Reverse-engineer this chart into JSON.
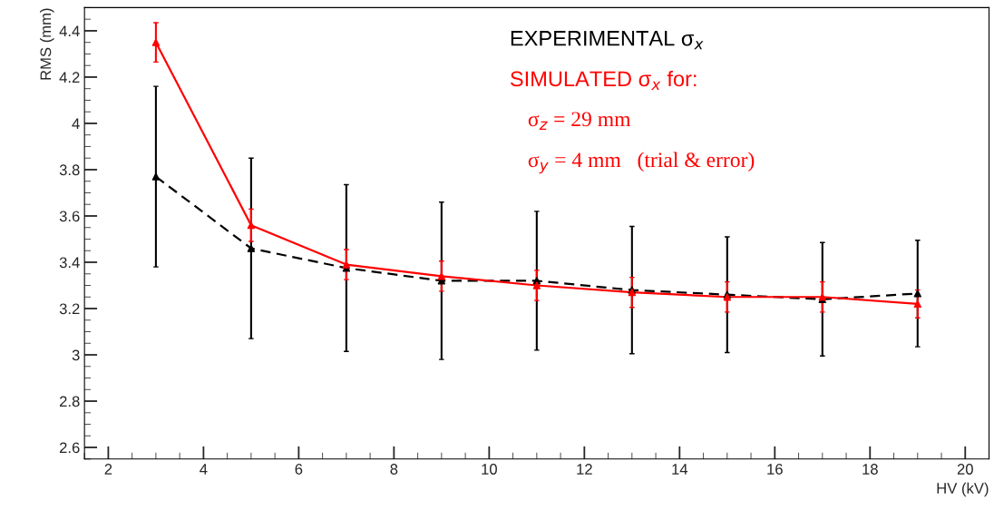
{
  "chart_data": {
    "type": "line",
    "xlabel": "HV (kV)",
    "ylabel": "RMS (mm)",
    "x": [
      3,
      5,
      7,
      9,
      11,
      13,
      15,
      17,
      19
    ],
    "series": [
      {
        "name": "EXPERIMENTAL σ$_{x}$",
        "color": "#000000",
        "line_style": "dashed",
        "marker": "triangle",
        "values": [
          3.77,
          3.46,
          3.375,
          3.32,
          3.32,
          3.28,
          3.26,
          3.24,
          3.265
        ],
        "errors": [
          0.39,
          0.39,
          0.36,
          0.34,
          0.3,
          0.275,
          0.25,
          0.245,
          0.23
        ]
      },
      {
        "name": "SIMULATED σ$_{x}$ for:",
        "color": "#ff0000",
        "line_style": "solid",
        "marker": "triangle",
        "values": [
          4.35,
          3.56,
          3.39,
          3.34,
          3.3,
          3.27,
          3.25,
          3.25,
          3.22
        ],
        "errors": [
          0.085,
          0.07,
          0.065,
          0.065,
          0.065,
          0.065,
          0.065,
          0.065,
          0.06
        ]
      }
    ],
    "annotations": [
      "σ$_{z}$ = 29 mm",
      "σ$_{y}$ = 4 mm   (trial & error)"
    ],
    "xlim": [
      1.5,
      20.5
    ],
    "xticks": [
      2,
      4,
      6,
      8,
      10,
      12,
      14,
      16,
      18,
      20
    ],
    "ylim": [
      2.55,
      4.5
    ],
    "yticks": [
      2.6,
      2.8,
      3,
      3.2,
      3.4,
      3.6,
      3.8,
      4,
      4.2,
      4.4
    ],
    "grid": false,
    "legend": "top right"
  }
}
